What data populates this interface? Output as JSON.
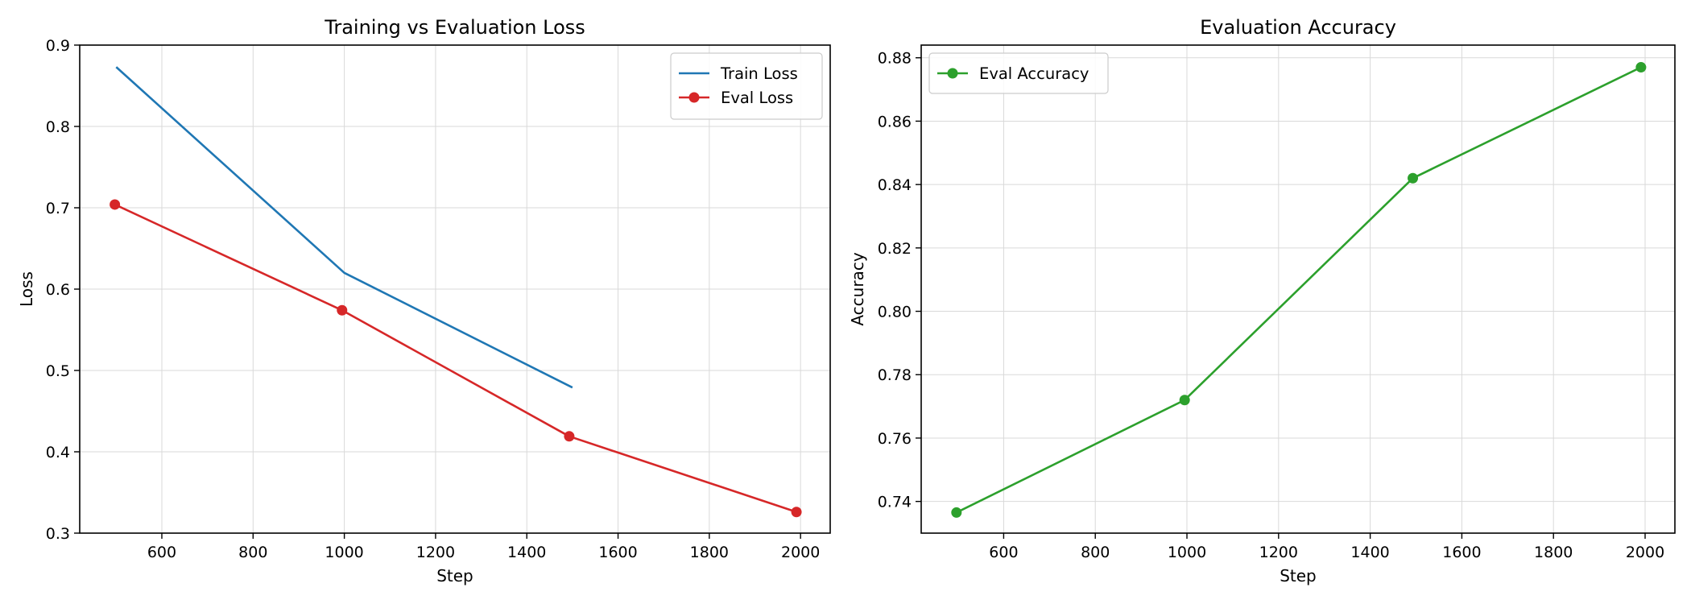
{
  "chart_data": [
    {
      "type": "line",
      "title": "Training vs Evaluation Loss",
      "xlabel": "Step",
      "ylabel": "Loss",
      "xlim": [
        420,
        2065
      ],
      "ylim": [
        0.3,
        0.9
      ],
      "xticks": [
        600,
        800,
        1000,
        1200,
        1400,
        1600,
        1800,
        2000
      ],
      "yticks": [
        0.3,
        0.4,
        0.5,
        0.6,
        0.7,
        0.8,
        0.9
      ],
      "grid": true,
      "legend_position": "top-right",
      "series": [
        {
          "name": "Train Loss",
          "color": "#1f77b4",
          "marker": "none",
          "x": [
            500,
            1000,
            1500
          ],
          "y": [
            0.873,
            0.62,
            0.479
          ]
        },
        {
          "name": "Eval Loss",
          "color": "#d62728",
          "marker": "circle",
          "x": [
            497,
            995,
            1493,
            1991
          ],
          "y": [
            0.704,
            0.574,
            0.419,
            0.326
          ]
        }
      ]
    },
    {
      "type": "line",
      "title": "Evaluation Accuracy",
      "xlabel": "Step",
      "ylabel": "Accuracy",
      "xlim": [
        420,
        2065
      ],
      "ylim": [
        0.73,
        0.884
      ],
      "xticks": [
        600,
        800,
        1000,
        1200,
        1400,
        1600,
        1800,
        2000
      ],
      "yticks": [
        0.74,
        0.76,
        0.78,
        0.8,
        0.82,
        0.84,
        0.86,
        0.88
      ],
      "grid": true,
      "legend_position": "top-left",
      "series": [
        {
          "name": "Eval Accuracy",
          "color": "#2ca02c",
          "marker": "circle",
          "x": [
            497,
            995,
            1493,
            1991
          ],
          "y": [
            0.7365,
            0.772,
            0.842,
            0.877
          ]
        }
      ]
    }
  ]
}
